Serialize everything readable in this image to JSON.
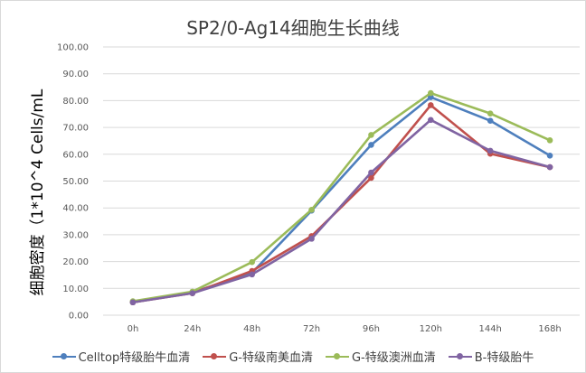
{
  "chart_data": {
    "type": "line",
    "title": "SP2/0-Ag14细胞生长曲线",
    "ylabel": "细胞密度（1*10^4 Cells/mL",
    "xlabel": "",
    "categories": [
      "0h",
      "24h",
      "48h",
      "72h",
      "96h",
      "120h",
      "144h",
      "168h"
    ],
    "ylim": [
      0,
      100
    ],
    "y_ticks": [
      "0.00",
      "10.00",
      "20.00",
      "30.00",
      "40.00",
      "50.00",
      "60.00",
      "70.00",
      "80.00",
      "90.00",
      "100.00"
    ],
    "grid": "horizontal",
    "legend_position": "bottom",
    "series": [
      {
        "name": "Celltop特级胎牛血清",
        "color": "#4e7fbd",
        "values": [
          4.8,
          8.5,
          15.8,
          39.0,
          63.5,
          81.3,
          72.5,
          59.5
        ]
      },
      {
        "name": "G-特级南美血清",
        "color": "#c0504d",
        "values": [
          4.8,
          8.2,
          16.5,
          29.5,
          51.2,
          78.3,
          60.2,
          55.2
        ]
      },
      {
        "name": "G-特级澳洲血清",
        "color": "#9bbb59",
        "values": [
          5.2,
          8.8,
          19.8,
          39.3,
          67.2,
          82.8,
          75.2,
          65.2
        ]
      },
      {
        "name": "B-特级胎牛",
        "color": "#8064a2",
        "values": [
          4.8,
          8.2,
          15.2,
          28.5,
          53.2,
          72.8,
          61.3,
          55.2
        ]
      }
    ]
  }
}
